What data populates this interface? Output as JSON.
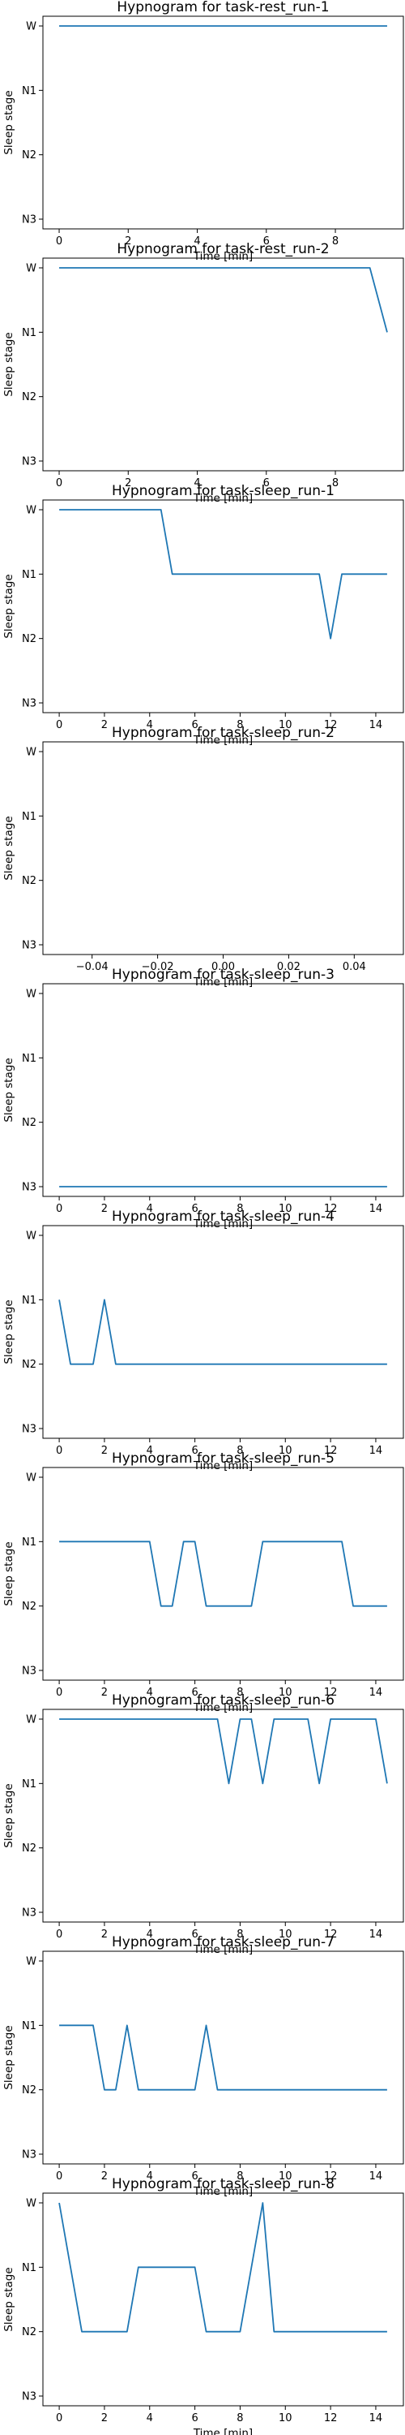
{
  "chart_data": [
    {
      "type": "line",
      "title": "Hypnogram for task-rest_run-1",
      "xlabel": "Time [min]",
      "ylabel": "Sleep stage",
      "stages": [
        "W",
        "N1",
        "N2",
        "N3"
      ],
      "xlim": [
        -0.47,
        9.97
      ],
      "xticks": [
        0,
        2,
        4,
        6,
        8
      ],
      "xtick_labels": [
        "0",
        "2",
        "4",
        "6",
        "8"
      ],
      "series": [
        {
          "color": "#1f77b4",
          "x": [
            0,
            9.5
          ],
          "y": [
            "W",
            "W"
          ]
        }
      ]
    },
    {
      "type": "line",
      "title": "Hypnogram for task-rest_run-2",
      "xlabel": "Time [min]",
      "ylabel": "Sleep stage",
      "stages": [
        "W",
        "N1",
        "N2",
        "N3"
      ],
      "xlim": [
        -0.47,
        9.97
      ],
      "xticks": [
        0,
        2,
        4,
        6,
        8
      ],
      "xtick_labels": [
        "0",
        "2",
        "4",
        "6",
        "8"
      ],
      "series": [
        {
          "color": "#1f77b4",
          "x": [
            0,
            9.0,
            9.5
          ],
          "y": [
            "W",
            "W",
            "N1"
          ]
        }
      ]
    },
    {
      "type": "line",
      "title": "Hypnogram for task-sleep_run-1",
      "xlabel": "Time [min]",
      "ylabel": "Sleep stage",
      "stages": [
        "W",
        "N1",
        "N2",
        "N3"
      ],
      "xlim": [
        -0.72,
        15.22
      ],
      "xticks": [
        0,
        2,
        4,
        6,
        8,
        10,
        12,
        14
      ],
      "xtick_labels": [
        "0",
        "2",
        "4",
        "6",
        "8",
        "10",
        "12",
        "14"
      ],
      "series": [
        {
          "color": "#1f77b4",
          "x": [
            0,
            4.5,
            5.0,
            11.5,
            12.0,
            12.5,
            14.5
          ],
          "y": [
            "W",
            "W",
            "N1",
            "N1",
            "N2",
            "N1",
            "N1"
          ]
        }
      ]
    },
    {
      "type": "line",
      "title": "Hypnogram for task-sleep_run-2",
      "xlabel": "Time [min]",
      "ylabel": "Sleep stage",
      "stages": [
        "W",
        "N1",
        "N2",
        "N3"
      ],
      "xlim": [
        -0.055,
        0.055
      ],
      "xticks": [
        -0.04,
        -0.02,
        0.0,
        0.02,
        0.04
      ],
      "xtick_labels": [
        "−0.04",
        "−0.02",
        "0.00",
        "0.02",
        "0.04"
      ],
      "series": []
    },
    {
      "type": "line",
      "title": "Hypnogram for task-sleep_run-3",
      "xlabel": "Time [min]",
      "ylabel": "Sleep stage",
      "stages": [
        "W",
        "N1",
        "N2",
        "N3"
      ],
      "xlim": [
        -0.72,
        15.22
      ],
      "xticks": [
        0,
        2,
        4,
        6,
        8,
        10,
        12,
        14
      ],
      "xtick_labels": [
        "0",
        "2",
        "4",
        "6",
        "8",
        "10",
        "12",
        "14"
      ],
      "series": [
        {
          "color": "#1f77b4",
          "x": [
            0,
            14.5
          ],
          "y": [
            "N3",
            "N3"
          ]
        }
      ]
    },
    {
      "type": "line",
      "title": "Hypnogram for task-sleep_run-4",
      "xlabel": "Time [min]",
      "ylabel": "Sleep stage",
      "stages": [
        "W",
        "N1",
        "N2",
        "N3"
      ],
      "xlim": [
        -0.72,
        15.22
      ],
      "xticks": [
        0,
        2,
        4,
        6,
        8,
        10,
        12,
        14
      ],
      "xtick_labels": [
        "0",
        "2",
        "4",
        "6",
        "8",
        "10",
        "12",
        "14"
      ],
      "series": [
        {
          "color": "#1f77b4",
          "x": [
            0,
            0.5,
            1.5,
            2.0,
            2.5,
            14.5
          ],
          "y": [
            "N1",
            "N2",
            "N2",
            "N1",
            "N2",
            "N2"
          ]
        }
      ]
    },
    {
      "type": "line",
      "title": "Hypnogram for task-sleep_run-5",
      "xlabel": "Time [min]",
      "ylabel": "Sleep stage",
      "stages": [
        "W",
        "N1",
        "N2",
        "N3"
      ],
      "xlim": [
        -0.72,
        15.22
      ],
      "xticks": [
        0,
        2,
        4,
        6,
        8,
        10,
        12,
        14
      ],
      "xtick_labels": [
        "0",
        "2",
        "4",
        "6",
        "8",
        "10",
        "12",
        "14"
      ],
      "series": [
        {
          "color": "#1f77b4",
          "x": [
            0,
            4.0,
            4.5,
            5.0,
            5.5,
            6.0,
            6.5,
            8.5,
            9.0,
            12.5,
            13.0,
            14.5
          ],
          "y": [
            "N1",
            "N1",
            "N2",
            "N2",
            "N1",
            "N1",
            "N2",
            "N2",
            "N1",
            "N1",
            "N2",
            "N2"
          ]
        }
      ]
    },
    {
      "type": "line",
      "title": "Hypnogram for task-sleep_run-6",
      "xlabel": "Time [min]",
      "ylabel": "Sleep stage",
      "stages": [
        "W",
        "N1",
        "N2",
        "N3"
      ],
      "xlim": [
        -0.72,
        15.22
      ],
      "xticks": [
        0,
        2,
        4,
        6,
        8,
        10,
        12,
        14
      ],
      "xtick_labels": [
        "0",
        "2",
        "4",
        "6",
        "8",
        "10",
        "12",
        "14"
      ],
      "series": [
        {
          "color": "#1f77b4",
          "x": [
            0,
            7.0,
            7.5,
            8.0,
            8.5,
            9.0,
            9.5,
            11.0,
            11.5,
            12.0,
            14.0,
            14.5
          ],
          "y": [
            "W",
            "W",
            "N1",
            "W",
            "W",
            "N1",
            "W",
            "W",
            "N1",
            "W",
            "W",
            "N1"
          ]
        }
      ]
    },
    {
      "type": "line",
      "title": "Hypnogram for task-sleep_run-7",
      "xlabel": "Time [min]",
      "ylabel": "Sleep stage",
      "stages": [
        "W",
        "N1",
        "N2",
        "N3"
      ],
      "xlim": [
        -0.72,
        15.22
      ],
      "xticks": [
        0,
        2,
        4,
        6,
        8,
        10,
        12,
        14
      ],
      "xtick_labels": [
        "0",
        "2",
        "4",
        "6",
        "8",
        "10",
        "12",
        "14"
      ],
      "series": [
        {
          "color": "#1f77b4",
          "x": [
            0,
            1.5,
            2.0,
            2.5,
            3.0,
            3.5,
            6.0,
            6.5,
            7.0,
            14.5
          ],
          "y": [
            "N1",
            "N1",
            "N2",
            "N2",
            "N1",
            "N2",
            "N2",
            "N1",
            "N2",
            "N2"
          ]
        }
      ]
    },
    {
      "type": "line",
      "title": "Hypnogram for task-sleep_run-8",
      "xlabel": "Time [min]",
      "ylabel": "Sleep stage",
      "stages": [
        "W",
        "N1",
        "N2",
        "N3"
      ],
      "xlim": [
        -0.72,
        15.22
      ],
      "xticks": [
        0,
        2,
        4,
        6,
        8,
        10,
        12,
        14
      ],
      "xtick_labels": [
        "0",
        "2",
        "4",
        "6",
        "8",
        "10",
        "12",
        "14"
      ],
      "series": [
        {
          "color": "#1f77b4",
          "x": [
            0,
            1.0,
            3.0,
            3.5,
            6.0,
            6.5,
            8.0,
            9.0,
            9.5,
            14.5
          ],
          "y": [
            "W",
            "N2",
            "N2",
            "N1",
            "N1",
            "N2",
            "N2",
            "W",
            "N2",
            "N2"
          ]
        }
      ]
    }
  ]
}
